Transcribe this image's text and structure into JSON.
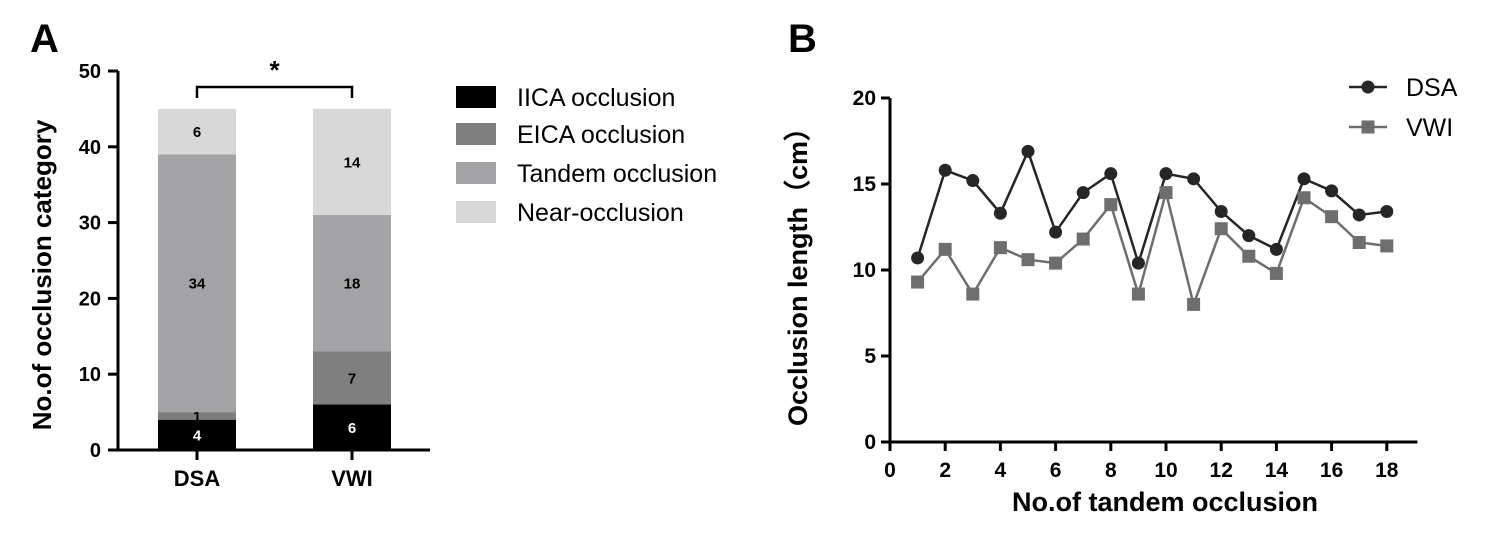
{
  "panel_a": {
    "letter": "A",
    "significance": "*"
  },
  "panel_b": {
    "letter": "B"
  },
  "colors": {
    "iica": "#000000",
    "eica": "#7f7f7f",
    "tandem": "#a3a3a6",
    "near": "#d8d8d8",
    "dsa_line": "#262626",
    "vwi_line": "#6e6e6e"
  },
  "chart_data": [
    {
      "type": "bar",
      "stacked": true,
      "title": "",
      "xlabel": "",
      "ylabel": "No.of occlusion category",
      "ylim": [
        0,
        50
      ],
      "yticks": [
        0,
        10,
        20,
        30,
        40,
        50
      ],
      "categories": [
        "DSA",
        "VWI"
      ],
      "series": [
        {
          "name": "IICA occlusion",
          "values": [
            4,
            6
          ]
        },
        {
          "name": "EICA occlusion",
          "values": [
            1,
            7
          ]
        },
        {
          "name": "Tandem occlusion",
          "values": [
            34,
            18
          ]
        },
        {
          "name": "Near-occlusion",
          "values": [
            6,
            14
          ]
        }
      ],
      "legend_position": "right"
    },
    {
      "type": "line",
      "title": "",
      "xlabel": "No.of tandem occlusion",
      "ylabel": "Occlusion length（cm）",
      "xlim": [
        0,
        19
      ],
      "ylim": [
        0,
        20
      ],
      "xticks": [
        0,
        2,
        4,
        6,
        8,
        10,
        12,
        14,
        16,
        18
      ],
      "yticks": [
        0,
        5,
        10,
        15,
        20
      ],
      "x": [
        1,
        2,
        3,
        4,
        5,
        6,
        7,
        8,
        9,
        10,
        11,
        12,
        13,
        14,
        15,
        16,
        17,
        18
      ],
      "series": [
        {
          "name": "DSA",
          "marker": "circle",
          "values": [
            10.7,
            15.8,
            15.2,
            13.3,
            16.9,
            12.2,
            14.5,
            15.6,
            10.4,
            15.6,
            15.3,
            13.4,
            12.0,
            11.2,
            15.3,
            14.6,
            13.2,
            13.4
          ]
        },
        {
          "name": "VWI",
          "marker": "square",
          "values": [
            9.3,
            11.2,
            8.6,
            11.3,
            10.6,
            10.4,
            11.8,
            13.8,
            8.6,
            14.5,
            8.0,
            12.4,
            10.8,
            9.8,
            14.2,
            13.1,
            11.6,
            11.4
          ]
        }
      ],
      "legend_position": "top-right"
    }
  ]
}
